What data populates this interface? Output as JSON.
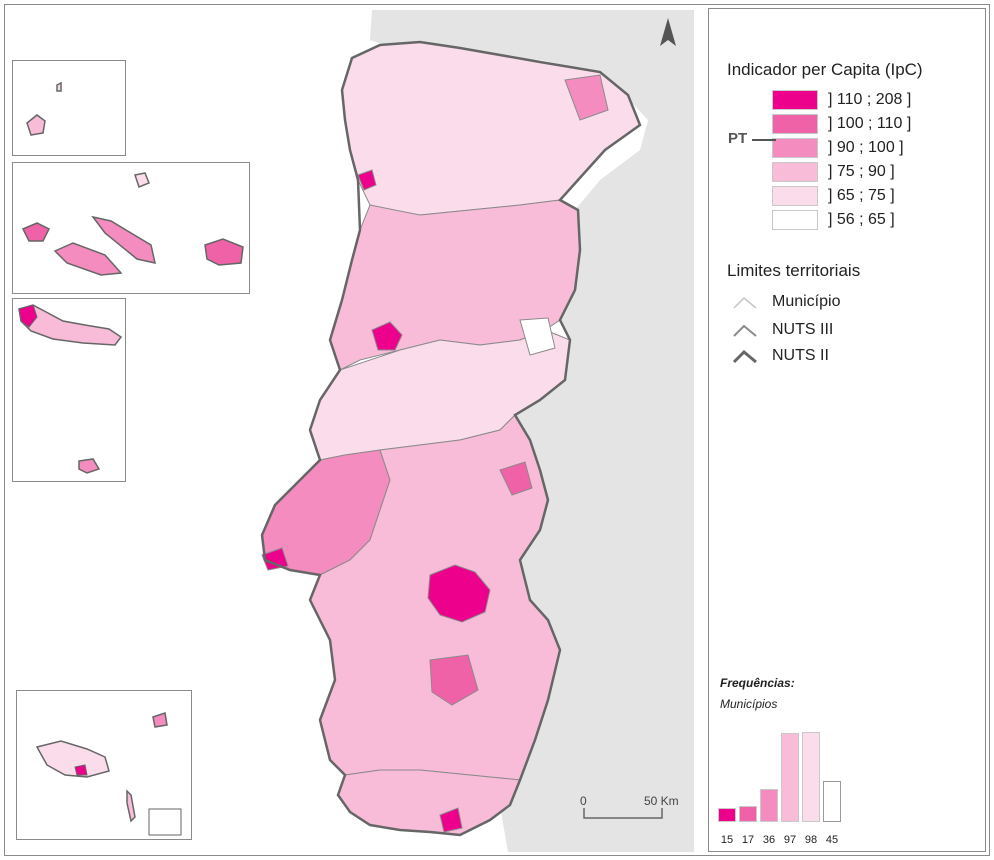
{
  "legend": {
    "title": "Indicador per Capita (IpC)",
    "pt_label": "PT",
    "classes": [
      {
        "label": "] 110 ; 208 ]",
        "color": "#ec008c"
      },
      {
        "label": "] 100 ; 110 ]",
        "color": "#f062a8"
      },
      {
        "label": "] 90 ; 100 ]",
        "color": "#f48cbf"
      },
      {
        "label": "] 75 ; 90 ]",
        "color": "#f8bcd8"
      },
      {
        "label": "] 65 ; 75 ]",
        "color": "#fbdcea"
      },
      {
        "label": "] 56 ; 65 ]",
        "color": "#ffffff"
      }
    ],
    "pt_class_index": 2
  },
  "limits": {
    "title": "Limites territoriais",
    "items": [
      {
        "label": "Município",
        "stroke": "#c4c4c4",
        "width": "1.2"
      },
      {
        "label": "NUTS III",
        "stroke": "#8a8a8a",
        "width": "1.8"
      },
      {
        "label": "NUTS II",
        "stroke": "#666666",
        "width": "2.8"
      }
    ]
  },
  "frequencies": {
    "title": "Frequências:",
    "subtitle": "Municípios",
    "counts": [
      15,
      17,
      36,
      97,
      98,
      45
    ],
    "labels": [
      "15",
      "17",
      "36",
      "97",
      "98",
      "45"
    ],
    "max": 98
  },
  "scale_bar": {
    "start": "0",
    "end": "50 Km"
  },
  "icons": {
    "north_arrow": "north-arrow-icon"
  }
}
